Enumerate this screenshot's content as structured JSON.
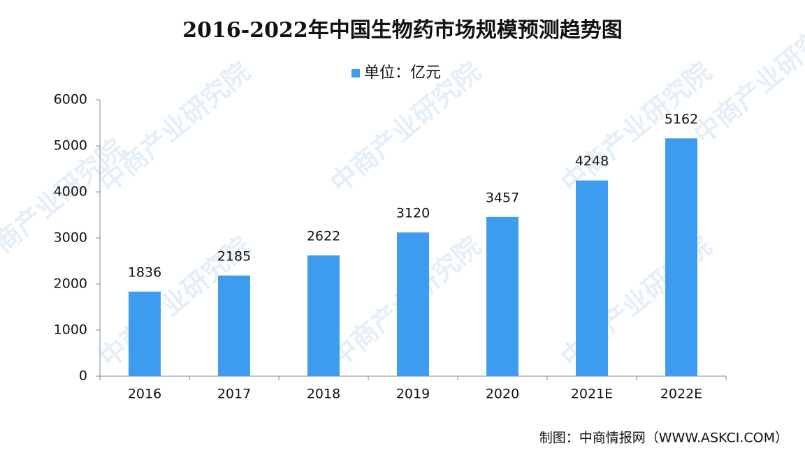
{
  "chart_data": {
    "type": "bar",
    "title": "2016-2022年中国生物药市场规模预测趋势图",
    "categories": [
      "2016",
      "2017",
      "2018",
      "2019",
      "2020",
      "2021E",
      "2022E"
    ],
    "series": [
      {
        "name": "单位：亿元",
        "color": "#3d9cf0",
        "values": [
          1836,
          2185,
          2622,
          3120,
          3457,
          4248,
          5162
        ]
      }
    ],
    "ylim": [
      0,
      6000
    ],
    "yticks": [
      0,
      1000,
      2000,
      3000,
      4000,
      5000,
      6000
    ],
    "grid": false,
    "legend": "top",
    "source": "制图：中商情报网（WWW.ASKCI.COM）",
    "watermark": "中商产业研究院"
  }
}
